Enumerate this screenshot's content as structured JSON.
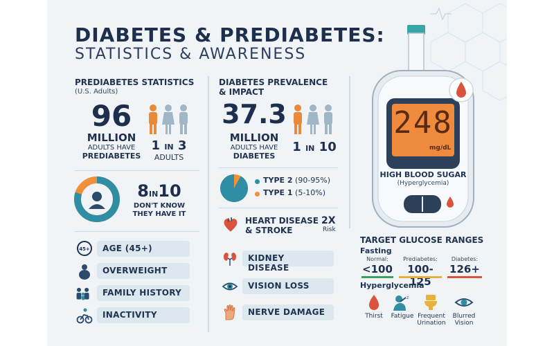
{
  "title": {
    "line1": "DIABETES & PREDIABETES:",
    "line2": "STATISTICS & AWARENESS"
  },
  "prediabetes": {
    "heading": "PREDIABETES STATISTICS",
    "sub": "(U.S. Adults)",
    "number": "96",
    "unit": "MILLION",
    "caption1": "ADULTS HAVE",
    "caption2": "PREDIABETES",
    "ratio_a": "1",
    "ratio_in": "IN",
    "ratio_b": "3",
    "ratio_caption": "ADULTS",
    "unaware_a": "8",
    "unaware_in": "IN",
    "unaware_b": "10",
    "unaware_caption1": "DON'T KNOW",
    "unaware_caption2": "THEY HAVE IT",
    "unaware_fraction": 0.8,
    "risk_factors": [
      {
        "icon": "age-45-icon",
        "label": "AGE (45+)",
        "badge": "45+"
      },
      {
        "icon": "overweight-icon",
        "label": "OVERWEIGHT"
      },
      {
        "icon": "family-history-icon",
        "label": "FAMILY HISTORY"
      },
      {
        "icon": "cyclist-icon",
        "label": "INACTIVITY"
      }
    ]
  },
  "diabetes": {
    "heading1": "DIABETES PREVALENCE",
    "heading2": "& IMPACT",
    "number": "37.3",
    "unit": "MILLION",
    "caption1": "ADULTS HAVE",
    "caption2": "DIABETES",
    "ratio_a": "1",
    "ratio_in": "IN",
    "ratio_b": "10",
    "types": [
      {
        "name": "TYPE 2",
        "range": "(90-95%)",
        "color": "#2f8ea3"
      },
      {
        "name": "TYPE 1",
        "range": "(5-10%)",
        "color": "#f0913a"
      }
    ],
    "type2_fraction": 0.92,
    "heart": {
      "label1": "HEART DISEASE",
      "label2": "& STROKE",
      "mult": "2X",
      "mult_cap": "Risk"
    },
    "complications": [
      {
        "icon": "kidney-icon",
        "label": "KIDNEY DISEASE"
      },
      {
        "icon": "eye-icon",
        "label": "VISION LOSS"
      },
      {
        "icon": "hand-icon",
        "label": "NERVE DAMAGE"
      }
    ]
  },
  "meter": {
    "reading": "248",
    "units": "mg/dL",
    "status": "HIGH BLOOD SUGAR",
    "status_sub": "(Hyperglycemia)"
  },
  "targets": {
    "heading": "TARGET GLUCOSE RANGES",
    "fasting": "Fasting",
    "ranges": [
      {
        "cap": "Normal:",
        "val": "<100",
        "color": "#3aa15a"
      },
      {
        "cap": "Prediabetes:",
        "val": "100-125",
        "color": "#e8b23a"
      },
      {
        "cap": "Diabetes:",
        "val": "126+",
        "color": "#d9533d"
      }
    ],
    "hyper_heading": "Hyperglycemia",
    "symptoms": [
      {
        "icon": "thirst-icon",
        "label1": "Thirst",
        "label2": ""
      },
      {
        "icon": "fatigue-icon",
        "label1": "Fatigue",
        "label2": ""
      },
      {
        "icon": "toilet-icon",
        "label1": "Frequent",
        "label2": "Urination"
      },
      {
        "icon": "blurred-eye-icon",
        "label1": "Blurred",
        "label2": "Vision"
      }
    ]
  },
  "colors": {
    "navy": "#1d2f4d",
    "teal": "#2f8ea3",
    "orange": "#f0913a",
    "red": "#d9533d",
    "pill": "#dce7ee"
  }
}
